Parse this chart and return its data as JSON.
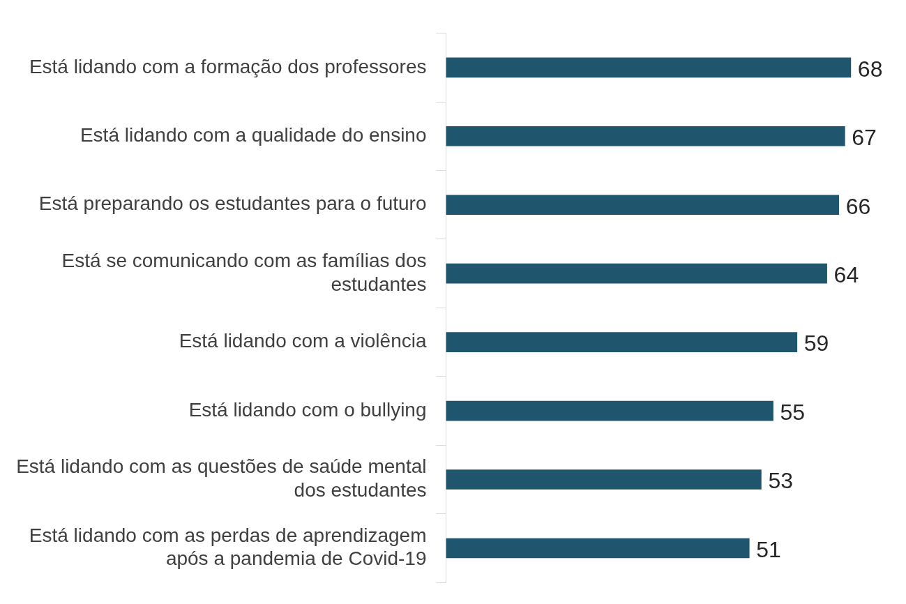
{
  "chart_data": {
    "type": "bar",
    "orientation": "horizontal",
    "categories": [
      "Está lidando com a formação dos professores",
      "Está lidando com a qualidade do ensino",
      "Está preparando os estudantes para o futuro",
      "Está se comunicando com as famílias dos estudantes",
      "Está lidando com a violência",
      "Está lidando com o bullying",
      "Está lidando com as questões de saúde mental dos estudantes",
      "Está lidando com as perdas de aprendizagem após a pandemia de Covid-19"
    ],
    "values": [
      68,
      67,
      66,
      64,
      59,
      55,
      53,
      51
    ],
    "color": "#1f566e",
    "data_labels": true,
    "tick_labels": "y"
  }
}
